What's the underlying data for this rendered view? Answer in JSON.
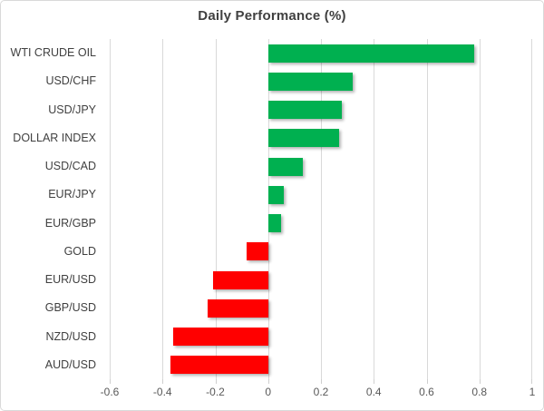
{
  "chart_data": {
    "type": "bar",
    "orientation": "horizontal",
    "title": "Daily Performance (%)",
    "categories": [
      "WTI CRUDE OIL",
      "USD/CHF",
      "USD/JPY",
      "DOLLAR INDEX",
      "USD/CAD",
      "EUR/JPY",
      "EUR/GBP",
      "GOLD",
      "EUR/USD",
      "GBP/USD",
      "NZD/USD",
      "AUD/USD"
    ],
    "values": [
      0.78,
      0.32,
      0.28,
      0.27,
      0.13,
      0.06,
      0.05,
      -0.08,
      -0.21,
      -0.23,
      -0.36,
      -0.37
    ],
    "xlabel": "",
    "ylabel": "",
    "xlim": [
      -0.6,
      1.0
    ],
    "x_ticks": [
      -0.6,
      -0.4,
      -0.2,
      0,
      0.2,
      0.4,
      0.6,
      0.8,
      1
    ],
    "x_tick_labels": [
      "-0.6",
      "-0.4",
      "-0.2",
      "0",
      "0.2",
      "0.4",
      "0.6",
      "0.8",
      "1"
    ],
    "grid": true,
    "legend": "none",
    "colors": {
      "positive": "#00B050",
      "negative": "#FF0000",
      "gridline": "#D9D9D9",
      "title_text": "#404040",
      "category_text": "#404040",
      "tick_text": "#595959",
      "frame_border": "#D9D9D9",
      "background": "#FFFFFF"
    }
  }
}
